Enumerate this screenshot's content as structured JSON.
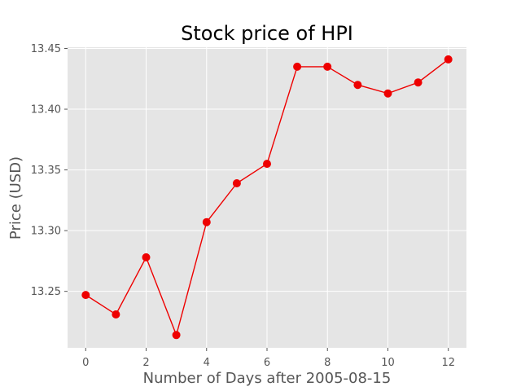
{
  "chart_data": {
    "type": "line",
    "title": "Stock price of HPI",
    "xlabel": "Number of Days after 2005-08-15",
    "ylabel": "Price (USD)",
    "x": [
      0,
      1,
      2,
      3,
      4,
      5,
      6,
      7,
      8,
      9,
      10,
      11,
      12
    ],
    "series": [
      {
        "values": [
          13.247,
          13.231,
          13.278,
          13.214,
          13.307,
          13.339,
          13.355,
          13.435,
          13.435,
          13.42,
          13.413,
          13.422,
          13.441
        ],
        "color": "#ee0000"
      }
    ],
    "xlim": [
      -0.6,
      12.6
    ],
    "ylim": [
      13.2035,
      13.451
    ],
    "xticks": [
      0,
      2,
      4,
      6,
      8,
      10,
      12
    ],
    "xtick_labels": [
      "0",
      "2",
      "4",
      "6",
      "8",
      "10",
      "12"
    ],
    "yticks": [
      13.25,
      13.3,
      13.35,
      13.4,
      13.45
    ],
    "ytick_labels": [
      "13.25",
      "13.30",
      "13.35",
      "13.40",
      "13.45"
    ],
    "grid": true,
    "background_color": "#e5e5e5",
    "grid_color": "#ffffff",
    "marker": "circle"
  }
}
